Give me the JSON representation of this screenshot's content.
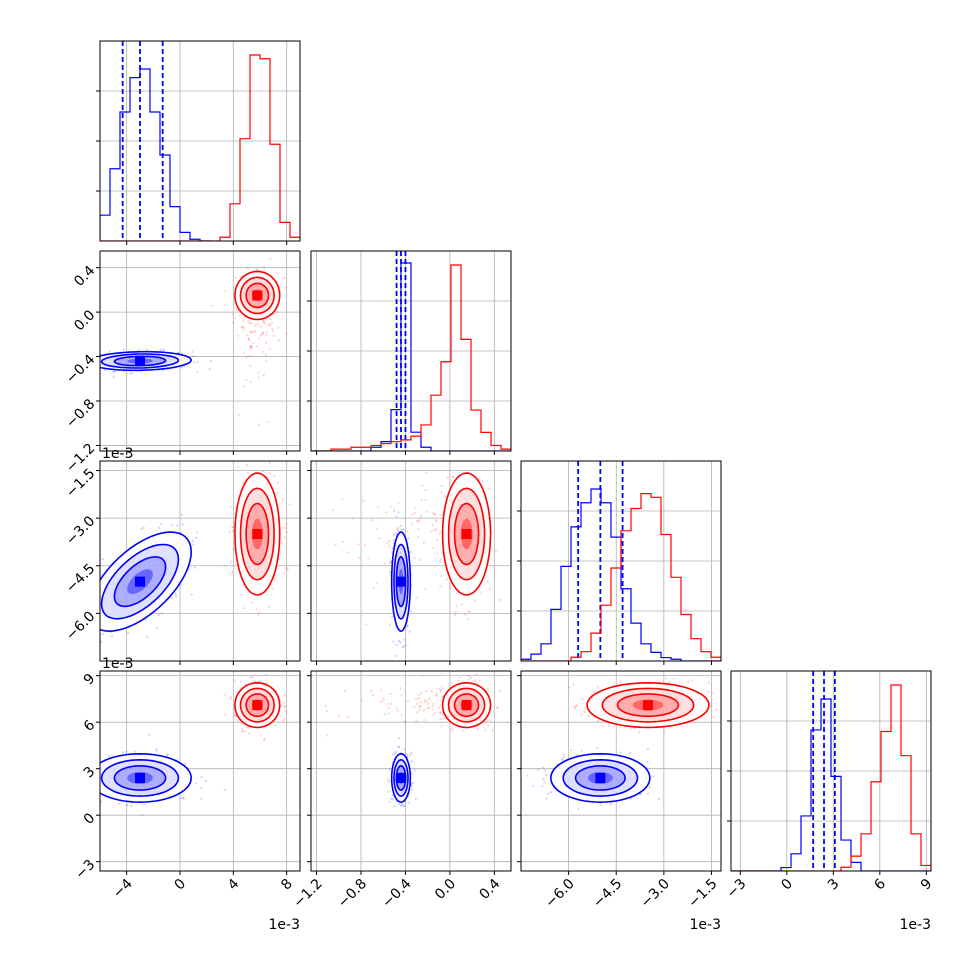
{
  "chart_data": {
    "type": "corner",
    "title": "",
    "grid": true,
    "exponent_label": "1e-3",
    "colors": {
      "blue": "#0000ff",
      "red": "#ff0000"
    },
    "parameters": [
      {
        "index": 0,
        "range": [
          -6,
          9
        ],
        "ticks": [
          -4,
          0,
          4,
          8
        ],
        "tick_labels": [
          "−4",
          "0",
          "4",
          "8"
        ],
        "show_offset": true
      },
      {
        "index": 1,
        "range": [
          -1.25,
          0.55
        ],
        "ticks": [
          -1.2,
          -0.8,
          -0.4,
          0.0,
          0.4
        ],
        "tick_labels": [
          "−1.2",
          "−0.8",
          "−0.4",
          "0.0",
          "0.4"
        ],
        "show_offset": false
      },
      {
        "index": 2,
        "range": [
          -7.5,
          -1.2
        ],
        "ticks": [
          -6.0,
          -4.5,
          -3.0,
          -1.5
        ],
        "tick_labels": [
          "−6.0",
          "−4.5",
          "−3.0",
          "−1.5"
        ],
        "show_offset": true
      },
      {
        "index": 3,
        "range": [
          -3.6,
          9.3
        ],
        "ticks": [
          -3,
          0,
          3,
          6,
          9
        ],
        "tick_labels": [
          "−3",
          "0",
          "3",
          "6",
          "9"
        ],
        "show_offset": true
      }
    ],
    "series": [
      {
        "color": "blue",
        "mean": [
          -3.0,
          -0.44,
          -5.0,
          2.4
        ],
        "std": [
          1.6,
          0.035,
          0.65,
          0.65
        ],
        "corr": {
          "0-2": 0.6,
          "0-1": 0.1,
          "0-3": 0.0,
          "1-2": 0.0,
          "1-3": 0.0,
          "2-3": 0.0
        },
        "quantiles": [
          [
            -4.3,
            -3.0,
            -1.3
          ],
          [
            -0.48,
            -0.44,
            -0.4
          ],
          [
            -5.7,
            -5.0,
            -4.3
          ],
          [
            1.7,
            2.4,
            3.1
          ]
        ],
        "hist": [
          {
            "edges": [
              -6,
              -5.25,
              -4.5,
              -3.75,
              -3,
              -2.25,
              -1.5,
              -0.75,
              0,
              0.75,
              1.5,
              2.25
            ],
            "counts": [
              0.15,
              0.42,
              0.75,
              0.95,
              1.0,
              0.75,
              0.5,
              0.2,
              0.05,
              0.01,
              0.0
            ]
          },
          {
            "edges": [
              -1.25,
              -1.16,
              -1.07,
              -0.98,
              -0.89,
              -0.8,
              -0.71,
              -0.62,
              -0.53,
              -0.44,
              -0.35,
              -0.26,
              -0.17,
              -0.08,
              0.01,
              0.1,
              0.19,
              0.28,
              0.37,
              0.46,
              0.55
            ],
            "counts": [
              0,
              0,
              0,
              0,
              0,
              0,
              0.02,
              0.05,
              0.22,
              1.0,
              0.1,
              0.02,
              0,
              0,
              0,
              0,
              0,
              0,
              0,
              0
            ]
          },
          {
            "edges": [
              -7.5,
              -7.185,
              -6.87,
              -6.555,
              -6.24,
              -5.925,
              -5.61,
              -5.295,
              -4.98,
              -4.665,
              -4.35,
              -4.035,
              -3.72,
              -3.405,
              -3.09,
              -2.775,
              -2.46,
              -2.145,
              -1.83,
              -1.515,
              -1.2
            ],
            "counts": [
              0.01,
              0.04,
              0.1,
              0.3,
              0.55,
              0.78,
              0.92,
              1.0,
              0.92,
              0.72,
              0.42,
              0.22,
              0.1,
              0.05,
              0.02,
              0.01,
              0,
              0,
              0,
              0
            ]
          },
          {
            "edges": [
              -3.6,
              -2.955,
              -2.31,
              -1.665,
              -1.02,
              -0.375,
              0.27,
              0.915,
              1.56,
              2.205,
              2.85,
              3.495,
              4.14,
              4.785,
              5.43,
              6.075,
              6.72,
              7.365,
              8.01,
              8.655,
              9.3
            ],
            "counts": [
              0,
              0,
              0,
              0,
              0,
              0.02,
              0.1,
              0.32,
              0.82,
              1.0,
              0.55,
              0.18,
              0.05,
              0,
              0,
              0,
              0,
              0,
              0,
              0
            ]
          }
        ]
      },
      {
        "color": "red",
        "mean": [
          5.8,
          0.15,
          -3.5,
          7.1
        ],
        "std": [
          0.7,
          0.09,
          0.8,
          0.6
        ],
        "corr": {
          "0-2": 0.0,
          "0-1": 0.0,
          "0-3": 0.0,
          "1-2": 0.0,
          "1-3": 0.0,
          "2-3": 0.0
        },
        "quantiles": [],
        "hist": [
          {
            "edges": [
              -6,
              -5.25,
              -4.5,
              -3.75,
              -3,
              -2.25,
              -1.5,
              -0.75,
              0,
              0.75,
              1.5,
              2.25,
              3,
              3.75,
              4.5,
              5.25,
              6,
              6.75,
              7.5,
              8.25,
              9
            ],
            "counts": [
              0,
              0,
              0,
              0,
              0,
              0,
              0,
              0,
              0,
              0,
              0,
              0,
              0.02,
              0.2,
              0.55,
              1.0,
              0.98,
              0.52,
              0.1,
              0.02
            ]
          },
          {
            "edges": [
              -1.25,
              -1.16,
              -1.07,
              -0.98,
              -0.89,
              -0.8,
              -0.71,
              -0.62,
              -0.53,
              -0.44,
              -0.35,
              -0.26,
              -0.17,
              -0.08,
              0.01,
              0.1,
              0.19,
              0.28,
              0.37,
              0.46,
              0.55
            ],
            "counts": [
              0,
              0,
              0.01,
              0.01,
              0.02,
              0.02,
              0.03,
              0.04,
              0.05,
              0.06,
              0.08,
              0.14,
              0.3,
              0.48,
              1.0,
              0.6,
              0.22,
              0.1,
              0.03,
              0.01
            ]
          },
          {
            "edges": [
              -7.5,
              -7.185,
              -6.87,
              -6.555,
              -6.24,
              -5.925,
              -5.61,
              -5.295,
              -4.98,
              -4.665,
              -4.35,
              -4.035,
              -3.72,
              -3.405,
              -3.09,
              -2.775,
              -2.46,
              -2.145,
              -1.83,
              -1.515,
              -1.2
            ],
            "counts": [
              0,
              0,
              0,
              0,
              0,
              0.02,
              0.05,
              0.15,
              0.3,
              0.5,
              0.7,
              0.82,
              0.9,
              0.88,
              0.68,
              0.45,
              0.25,
              0.12,
              0.05,
              0.02
            ]
          },
          {
            "edges": [
              -3.6,
              -2.955,
              -2.31,
              -1.665,
              -1.02,
              -0.375,
              0.27,
              0.915,
              1.56,
              2.205,
              2.85,
              3.495,
              4.14,
              4.785,
              5.43,
              6.075,
              6.72,
              7.365,
              8.01,
              8.655,
              9.3
            ],
            "counts": [
              0,
              0,
              0,
              0,
              0,
              0,
              0,
              0,
              0,
              0,
              0,
              0.02,
              0.08,
              0.2,
              0.48,
              0.75,
              1.0,
              0.62,
              0.2,
              0.03
            ]
          }
        ]
      }
    ]
  }
}
